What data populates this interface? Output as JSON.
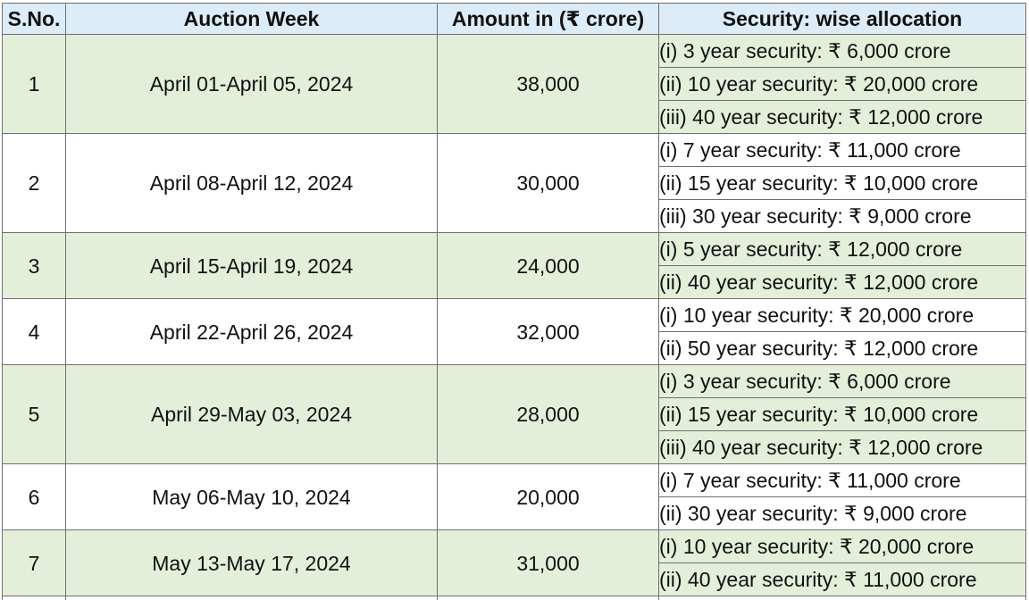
{
  "table": {
    "headers": {
      "sno": "S.No.",
      "week": "Auction Week",
      "amount": "Amount in  (₹ crore)",
      "allocation": "Security: wise allocation"
    },
    "rows": [
      {
        "sno": "1",
        "week": "April 01-April 05, 2024",
        "amount": "38,000",
        "allocations": [
          "(i) 3 year security: ₹ 6,000 crore",
          "(ii) 10 year security: ₹ 20,000 crore",
          "(iii) 40 year security: ₹ 12,000 crore"
        ]
      },
      {
        "sno": "2",
        "week": "April 08-April 12, 2024",
        "amount": "30,000",
        "allocations": [
          "(i) 7 year security: ₹ 11,000 crore",
          "(ii) 15 year security: ₹ 10,000 crore",
          "(iii) 30 year security: ₹ 9,000 crore"
        ]
      },
      {
        "sno": "3",
        "week": "April 15-April 19, 2024",
        "amount": "24,000",
        "allocations": [
          "(i) 5 year security: ₹ 12,000 crore",
          "(ii) 40 year security: ₹ 12,000 crore"
        ]
      },
      {
        "sno": "4",
        "week": "April 22-April 26, 2024",
        "amount": "32,000",
        "allocations": [
          "(i) 10 year security: ₹ 20,000 crore",
          "(ii) 50 year security: ₹ 12,000 crore"
        ]
      },
      {
        "sno": "5",
        "week": "April 29-May 03, 2024",
        "amount": "28,000",
        "allocations": [
          "(i) 3 year security: ₹ 6,000 crore",
          "(ii) 15 year security: ₹ 10,000 crore",
          "(iii) 40 year security: ₹ 12,000 crore"
        ]
      },
      {
        "sno": "6",
        "week": "May 06-May 10, 2024",
        "amount": "20,000",
        "allocations": [
          "(i) 7 year security: ₹ 11,000 crore",
          "(ii) 30 year security: ₹ 9,000 crore"
        ]
      },
      {
        "sno": "7",
        "week": "May 13-May 17, 2024",
        "amount": "31,000",
        "allocations": [
          "(i) 10 year security: ₹ 20,000 crore",
          "(ii) 40 year security: ₹ 11,000 crore"
        ]
      }
    ],
    "colors": {
      "header_bg": "#dcecf9",
      "band_green": "#e4efda",
      "band_white": "#ffffff",
      "border": "#6f6f6f"
    }
  }
}
